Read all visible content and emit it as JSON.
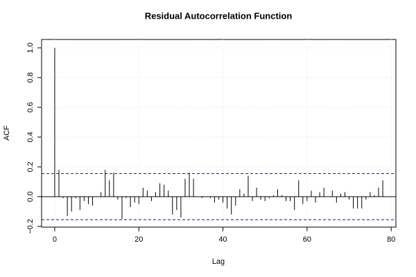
{
  "chart_data": {
    "type": "spike",
    "title": "Residual Autocorrelation Function",
    "xlabel": "Lag",
    "ylabel": "ACF",
    "x": [
      0,
      1,
      2,
      3,
      4,
      5,
      6,
      7,
      8,
      9,
      10,
      11,
      12,
      13,
      14,
      15,
      16,
      17,
      18,
      19,
      20,
      21,
      22,
      23,
      24,
      25,
      26,
      27,
      28,
      29,
      30,
      31,
      32,
      33,
      34,
      35,
      36,
      37,
      38,
      39,
      40,
      41,
      42,
      43,
      44,
      45,
      46,
      47,
      48,
      49,
      50,
      51,
      52,
      53,
      54,
      55,
      56,
      57,
      58,
      59,
      60,
      61,
      62,
      63,
      64,
      65,
      66,
      67,
      68,
      69,
      70,
      71,
      72,
      73,
      74,
      75,
      76,
      77,
      78
    ],
    "values": [
      1.0,
      0.18,
      -0.01,
      -0.13,
      -0.1,
      -0.01,
      -0.09,
      -0.03,
      -0.05,
      -0.06,
      0.0,
      0.03,
      0.18,
      0.11,
      0.16,
      -0.02,
      -0.15,
      -0.01,
      -0.07,
      -0.04,
      -0.05,
      0.06,
      0.04,
      -0.03,
      0.03,
      0.09,
      0.08,
      0.04,
      -0.12,
      -0.09,
      -0.14,
      0.12,
      0.16,
      0.12,
      0.0,
      -0.01,
      0.0,
      -0.01,
      -0.04,
      -0.02,
      -0.04,
      -0.08,
      -0.12,
      -0.06,
      0.05,
      0.02,
      0.14,
      -0.03,
      0.06,
      -0.02,
      -0.03,
      -0.01,
      0.01,
      0.05,
      0.01,
      -0.03,
      -0.03,
      -0.09,
      0.11,
      -0.05,
      -0.03,
      0.04,
      -0.04,
      0.03,
      0.06,
      0.0,
      0.04,
      -0.04,
      0.02,
      0.03,
      -0.02,
      -0.08,
      -0.08,
      -0.08,
      -0.02,
      0.03,
      0.01,
      0.06,
      0.11
    ],
    "color": "#000000",
    "ci_lines": [
      0.155,
      -0.155
    ],
    "ci_color": "#0000ff",
    "xlim": [
      -3.12,
      81.12
    ],
    "ylim": [
      -0.205,
      1.056
    ],
    "xticks": [
      0,
      20,
      40,
      60,
      80
    ],
    "yticks": [
      {
        "value": -0.2,
        "label": "−0.2"
      },
      {
        "value": 0,
        "label": "0.0"
      },
      0.2,
      0.4,
      0.6,
      0.8,
      {
        "value": 1,
        "label": "1.0"
      }
    ],
    "grid": true
  }
}
